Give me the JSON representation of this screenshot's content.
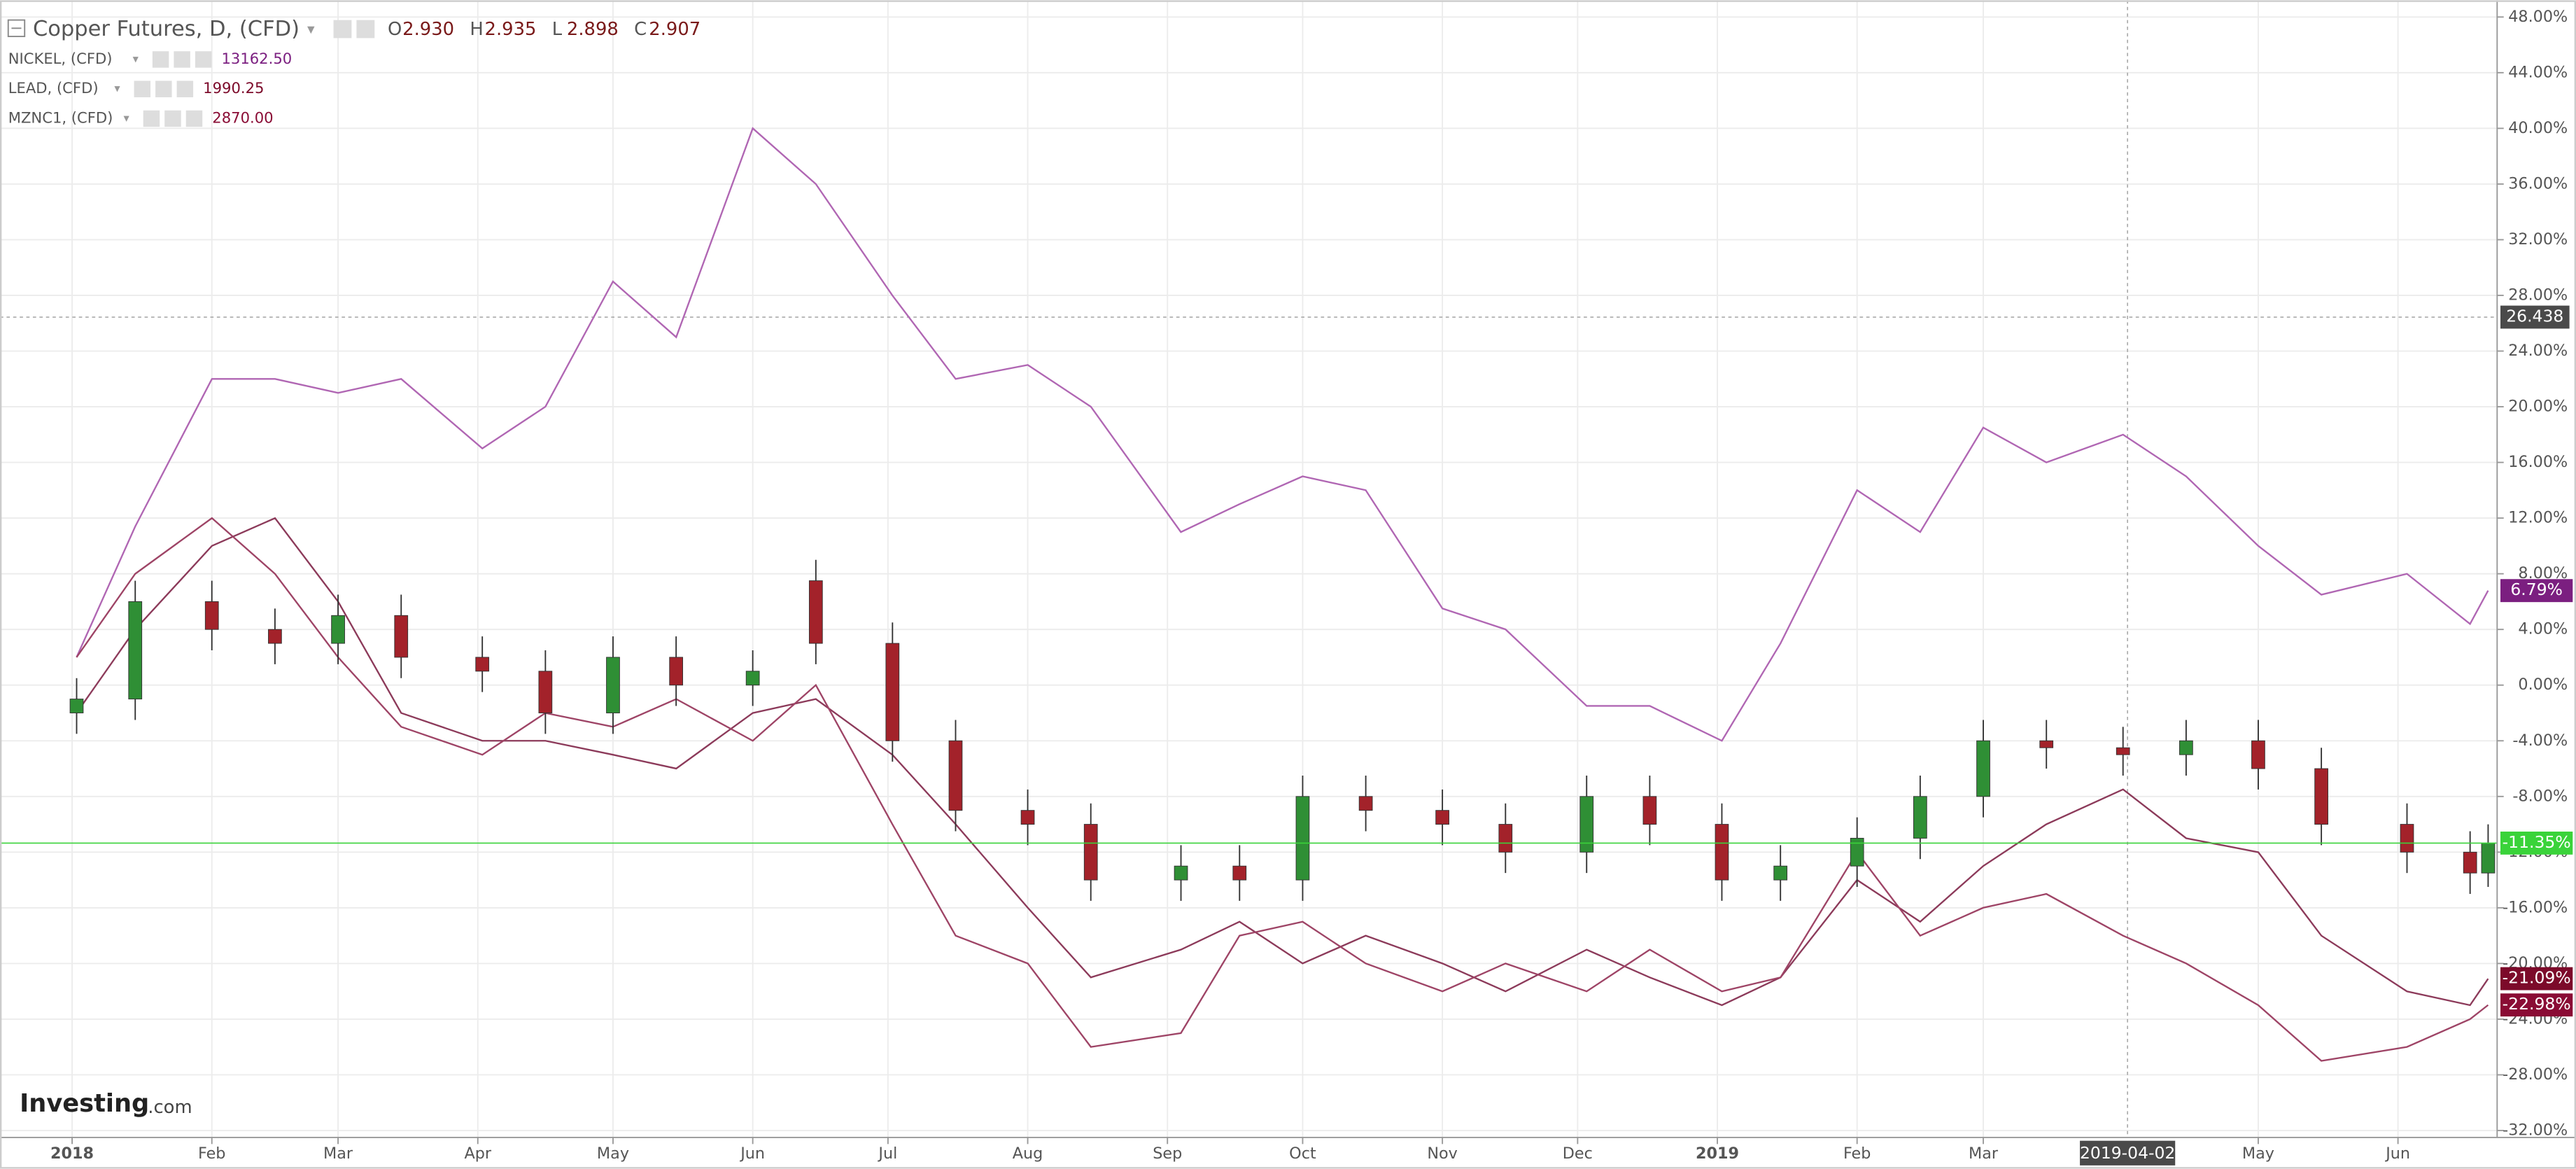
{
  "chart_data": {
    "type": "candlestick",
    "title": "Copper Futures, D, (CFD)",
    "header_ohlc": [
      {
        "label": "O",
        "value": "2.930"
      },
      {
        "label": "H",
        "value": "2.935"
      },
      {
        "label": "L",
        "value": "2.898"
      },
      {
        "label": "C",
        "value": "2.907"
      }
    ],
    "x": [
      "2018-01-02",
      "2018-01-15",
      "2018-02-01",
      "2018-02-15",
      "2018-03-01",
      "2018-03-15",
      "2018-04-02",
      "2018-04-16",
      "2018-05-01",
      "2018-05-15",
      "2018-06-01",
      "2018-06-15",
      "2018-07-02",
      "2018-07-16",
      "2018-08-01",
      "2018-08-15",
      "2018-09-04",
      "2018-09-17",
      "2018-10-01",
      "2018-10-15",
      "2018-11-01",
      "2018-11-15",
      "2018-12-03",
      "2018-12-17",
      "2019-01-02",
      "2019-01-15",
      "2019-02-01",
      "2019-02-15",
      "2019-03-01",
      "2019-03-15",
      "2019-04-01",
      "2019-04-15",
      "2019-05-01",
      "2019-05-15",
      "2019-06-03",
      "2019-06-17",
      "2019-06-21"
    ],
    "open": [
      -2,
      -1,
      6,
      4,
      3,
      5,
      2,
      1,
      -2,
      2,
      0,
      7.5,
      3,
      -4,
      -9,
      -10,
      -14,
      -13,
      -14,
      -8,
      -9,
      -10,
      -12,
      -8,
      -10,
      -14,
      -13,
      -11,
      -8,
      -4,
      -4.5,
      -5,
      -4,
      -6,
      -10,
      -12,
      -13.5
    ],
    "high": [
      0.5,
      7.5,
      7.5,
      5.5,
      6.5,
      6.5,
      3.5,
      2.5,
      3.5,
      3.5,
      2.5,
      9,
      4.5,
      -2.5,
      -7.5,
      -8.5,
      -11.5,
      -11.5,
      -6.5,
      -6.5,
      -7.5,
      -8.5,
      -6.5,
      -6.5,
      -8.5,
      -11.5,
      -9.5,
      -6.5,
      -2.5,
      -2.5,
      -3,
      -2.5,
      -2.5,
      -4.5,
      -8.5,
      -10.5,
      -10
    ],
    "low": [
      -3.5,
      -2.5,
      2.5,
      1.5,
      1.5,
      0.5,
      -0.5,
      -3.5,
      -3.5,
      -1.5,
      -1.5,
      1.5,
      -5.5,
      -10.5,
      -11.5,
      -15.5,
      -15.5,
      -15.5,
      -15.5,
      -10.5,
      -11.5,
      -13.5,
      -13.5,
      -11.5,
      -15.5,
      -15.5,
      -14.5,
      -12.5,
      -9.5,
      -6,
      -6.5,
      -6.5,
      -7.5,
      -11.5,
      -13.5,
      -15,
      -14.5
    ],
    "close": [
      -1,
      6,
      4,
      3,
      5,
      2,
      1,
      -2,
      2,
      0,
      1,
      3,
      -4,
      -9,
      -10,
      -14,
      -13,
      -14,
      -8,
      -9,
      -10,
      -12,
      -8,
      -10,
      -14,
      -13,
      -11,
      -8,
      -4,
      -4.5,
      -5,
      -4,
      -6,
      -10,
      -12,
      -13.5,
      -11.35
    ],
    "up_color": "#2f8f35",
    "down_color": "#a3222a",
    "last_label": "-11.35%",
    "last_color": "#3ad33a",
    "series": [
      {
        "name": "NICKEL, (CFD)",
        "price": "13162.50",
        "color": "#b066b3",
        "label_color": "#7b1f80",
        "last_label": "6.79%",
        "values": [
          2,
          11.4,
          22,
          22,
          21,
          22,
          17,
          20,
          29,
          25,
          40,
          36,
          28,
          22,
          23,
          20,
          11,
          13,
          15,
          14,
          5.5,
          4,
          -1.5,
          -1.5,
          -4,
          3,
          14,
          11,
          18.5,
          16,
          18,
          15,
          10,
          6.5,
          8,
          4.4,
          6.79
        ]
      },
      {
        "name": "LEAD, (CFD)",
        "price": "1990.25",
        "color": "#8c3a5a",
        "label_color": "#7c0a2a",
        "last_label": "-21.09%",
        "values": [
          -2,
          4,
          10,
          12,
          6,
          -2,
          -4,
          -4,
          -5,
          -6,
          -2,
          -1,
          -5,
          -10,
          -16,
          -21,
          -19,
          -17,
          -20,
          -18,
          -20,
          -22,
          -19,
          -21,
          -23,
          -21,
          -14,
          -17,
          -13,
          -10,
          -7.5,
          -11,
          -12,
          -18,
          -22,
          -23,
          -21.09
        ]
      },
      {
        "name": "MZNC1, (CFD)",
        "price": "2870.00",
        "color": "#9e4466",
        "label_color": "#8a0c35",
        "last_label": "-22.98%",
        "values": [
          2,
          8,
          12,
          8,
          2,
          -3,
          -5,
          -2,
          -3,
          -1,
          -4,
          0,
          -10,
          -18,
          -20,
          -26,
          -25,
          -18,
          -17,
          -20,
          -22,
          -20,
          -22,
          -19,
          -22,
          -21,
          -12,
          -18,
          -16,
          -15,
          -18,
          -20,
          -23,
          -27,
          -26,
          -24,
          -22.98
        ]
      }
    ],
    "xlim": [
      "2017-12-16",
      "2019-06-23"
    ],
    "xticks": [
      {
        "value": "2018-01-01",
        "label": "2018"
      },
      {
        "value": "2018-02-01",
        "label": "Feb"
      },
      {
        "value": "2018-03-01",
        "label": "Mar"
      },
      {
        "value": "2018-04-01",
        "label": "Apr"
      },
      {
        "value": "2018-05-01",
        "label": "May"
      },
      {
        "value": "2018-06-01",
        "label": "Jun"
      },
      {
        "value": "2018-07-01",
        "label": "Jul"
      },
      {
        "value": "2018-08-01",
        "label": "Aug"
      },
      {
        "value": "2018-09-01",
        "label": "Sep"
      },
      {
        "value": "2018-10-01",
        "label": "Oct"
      },
      {
        "value": "2018-11-01",
        "label": "Nov"
      },
      {
        "value": "2018-12-01",
        "label": "Dec"
      },
      {
        "value": "2019-01-01",
        "label": "2019"
      },
      {
        "value": "2019-02-01",
        "label": "Feb"
      },
      {
        "value": "2019-03-01",
        "label": "Mar"
      },
      {
        "value": "2019-05-01",
        "label": "May"
      },
      {
        "value": "2019-06-01",
        "label": "Jun"
      }
    ],
    "ylim": [
      -32.5,
      49.2
    ],
    "yticks": [
      {
        "value": -32,
        "label": "-32.00%"
      },
      {
        "value": -28,
        "label": "-28.00%"
      },
      {
        "value": -24,
        "label": "-24.00%"
      },
      {
        "value": -20,
        "label": "-20.00%"
      },
      {
        "value": -16,
        "label": "-16.00%"
      },
      {
        "value": -12,
        "label": "-12.00%"
      },
      {
        "value": -8,
        "label": "-8.00%"
      },
      {
        "value": -4,
        "label": "-4.00%"
      },
      {
        "value": 0,
        "label": "0.00%"
      },
      {
        "value": 4,
        "label": "4.00%"
      },
      {
        "value": 8,
        "label": "8.00%"
      },
      {
        "value": 12,
        "label": "12.00%"
      },
      {
        "value": 16,
        "label": "16.00%"
      },
      {
        "value": 20,
        "label": "20.00%"
      },
      {
        "value": 24,
        "label": "24.00%"
      },
      {
        "value": 28,
        "label": "28.00%"
      },
      {
        "value": 32,
        "label": "32.00%"
      },
      {
        "value": 36,
        "label": "36.00%"
      },
      {
        "value": 40,
        "label": "40.00%"
      },
      {
        "value": 44,
        "label": "44.00%"
      },
      {
        "value": 48,
        "label": "48.00%"
      }
    ],
    "grid": true,
    "crosshair": {
      "y": 26.438,
      "x": "2019-04-02"
    },
    "logo": {
      "brand": "Investing",
      "suffix": ".com"
    }
  }
}
